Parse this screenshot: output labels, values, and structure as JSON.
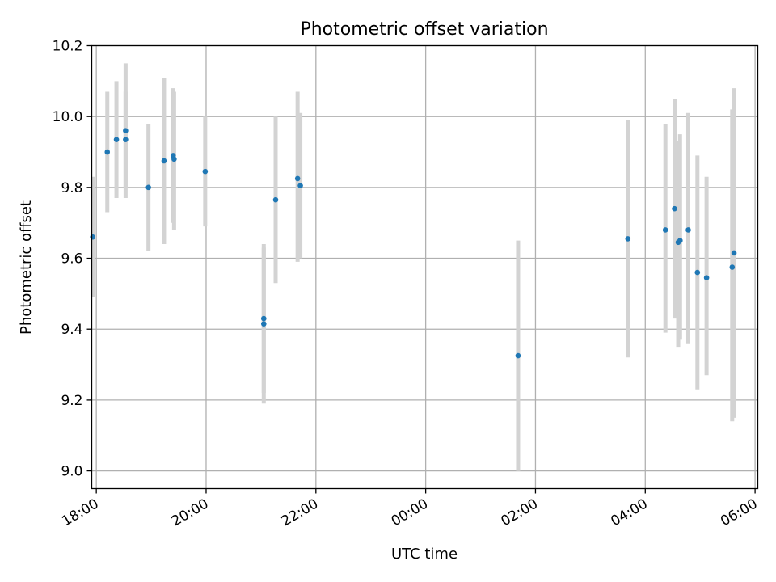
{
  "chart_data": {
    "type": "scatter",
    "title": "Photometric offset variation",
    "xlabel": "UTC time",
    "ylabel": "Photometric offset",
    "x_axis_kind": "time",
    "xlim": [
      "17:55",
      "06:03"
    ],
    "ylim": [
      8.95,
      10.2
    ],
    "x_ticks": [
      "18:00",
      "20:00",
      "22:00",
      "00:00",
      "02:00",
      "04:00",
      "06:00"
    ],
    "y_ticks": [
      "9.0",
      "9.2",
      "9.4",
      "9.6",
      "9.8",
      "10.0",
      "10.2"
    ],
    "grid": true,
    "legend": "none",
    "colors": {
      "marker": "#1f77b4",
      "errorbar": "#d3d3d3",
      "grid": "#b0b0b0"
    },
    "points": [
      {
        "t": "17:56",
        "y": 9.66,
        "lo": 9.49,
        "hi": 9.83
      },
      {
        "t": "18:12",
        "y": 9.9,
        "lo": 9.73,
        "hi": 10.07
      },
      {
        "t": "18:22",
        "y": 9.935,
        "lo": 9.77,
        "hi": 10.1
      },
      {
        "t": "18:32",
        "y": 9.96,
        "lo": 9.77,
        "hi": 10.15
      },
      {
        "t": "18:32",
        "y": 9.935,
        "lo": 9.8,
        "hi": 10.07
      },
      {
        "t": "18:57",
        "y": 9.8,
        "lo": 9.62,
        "hi": 9.98
      },
      {
        "t": "19:14",
        "y": 9.875,
        "lo": 9.64,
        "hi": 10.11
      },
      {
        "t": "19:24",
        "y": 9.89,
        "lo": 9.7,
        "hi": 10.08
      },
      {
        "t": "19:25",
        "y": 9.88,
        "lo": 9.68,
        "hi": 10.07
      },
      {
        "t": "19:59",
        "y": 9.845,
        "lo": 9.69,
        "hi": 10.0
      },
      {
        "t": "21:03",
        "y": 9.43,
        "lo": 9.22,
        "hi": 9.64
      },
      {
        "t": "21:03",
        "y": 9.415,
        "lo": 9.19,
        "hi": 9.63
      },
      {
        "t": "21:16",
        "y": 9.765,
        "lo": 9.53,
        "hi": 10.0
      },
      {
        "t": "21:40",
        "y": 9.825,
        "lo": 9.59,
        "hi": 10.07
      },
      {
        "t": "21:43",
        "y": 9.805,
        "lo": 9.6,
        "hi": 10.01
      },
      {
        "t": "01:41",
        "y": 9.325,
        "lo": 9.0,
        "hi": 9.65
      },
      {
        "t": "03:41",
        "y": 9.655,
        "lo": 9.32,
        "hi": 9.99
      },
      {
        "t": "04:22",
        "y": 9.68,
        "lo": 9.39,
        "hi": 9.98
      },
      {
        "t": "04:32",
        "y": 9.74,
        "lo": 9.43,
        "hi": 10.05
      },
      {
        "t": "04:36",
        "y": 9.645,
        "lo": 9.35,
        "hi": 9.93
      },
      {
        "t": "04:38",
        "y": 9.65,
        "lo": 9.37,
        "hi": 9.95
      },
      {
        "t": "04:47",
        "y": 9.68,
        "lo": 9.36,
        "hi": 10.01
      },
      {
        "t": "04:57",
        "y": 9.56,
        "lo": 9.23,
        "hi": 9.89
      },
      {
        "t": "05:07",
        "y": 9.545,
        "lo": 9.27,
        "hi": 9.83
      },
      {
        "t": "05:35",
        "y": 9.575,
        "lo": 9.14,
        "hi": 10.02
      },
      {
        "t": "05:37",
        "y": 9.615,
        "lo": 9.15,
        "hi": 10.08
      }
    ]
  }
}
